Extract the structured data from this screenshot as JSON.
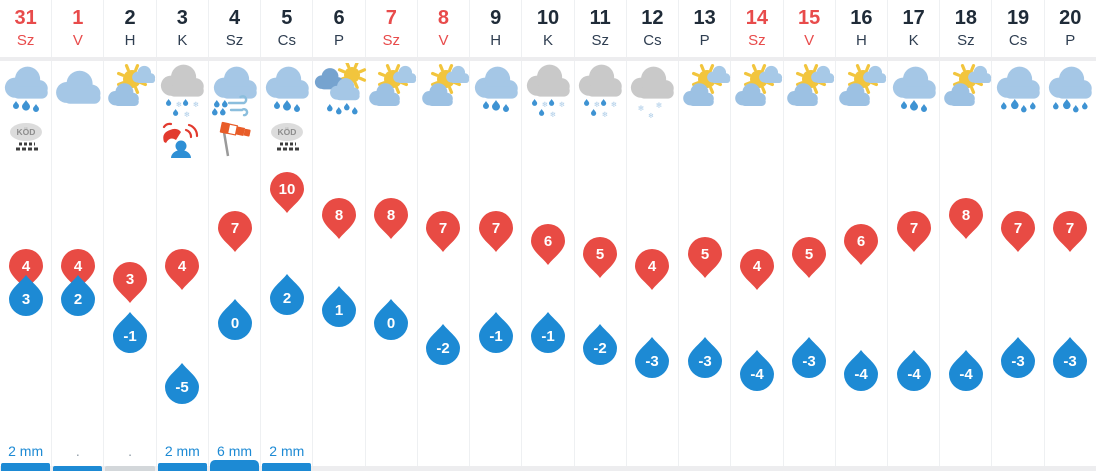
{
  "colors": {
    "accent_red": "#e84b44",
    "accent_blue": "#1d8ad4",
    "date_dark": "#1f2b38",
    "day_dark": "#2f3e51",
    "cloud_blue": "#a5c7e6",
    "cloud_dark_blue": "#76a3cf",
    "cloud_gray": "#c9c9c9",
    "sun_yellow": "#f2c53d",
    "raindrop_blue": "#3e93d3",
    "snowflake_blue": "#aecde8",
    "bar_gray": "#d3d7da",
    "baseline_gray": "#ededef",
    "grid_line": "#eef0f2",
    "muted_text": "#8d9aa5"
  },
  "columns": [
    {
      "date": "31",
      "day": "Sz",
      "weekend": true,
      "icon": "rain3",
      "extra_icon": "fog",
      "high": 4,
      "low": 3,
      "precip": "2 mm",
      "bar": {
        "height": 8,
        "color": "blue"
      }
    },
    {
      "date": "1",
      "day": "V",
      "weekend": true,
      "icon": "cloud",
      "extra_icon": null,
      "high": 4,
      "low": 2,
      "precip": ".",
      "bar": {
        "height": 5,
        "color": "blue"
      }
    },
    {
      "date": "2",
      "day": "H",
      "weekend": false,
      "icon": "suncloud",
      "extra_icon": null,
      "high": 3,
      "low": -1,
      "precip": ".",
      "bar": {
        "height": 5,
        "color": "gray"
      }
    },
    {
      "date": "3",
      "day": "K",
      "weekend": false,
      "icon": "sleet",
      "extra_icon": "siren",
      "high": 4,
      "low": -5,
      "precip": "2 mm",
      "bar": {
        "height": 8,
        "color": "blue"
      }
    },
    {
      "date": "4",
      "day": "Sz",
      "weekend": false,
      "icon": "rainwind",
      "extra_icon": "windsock",
      "high": 7,
      "low": 0,
      "precip": "6 mm",
      "bar": {
        "height": 11,
        "color": "blue"
      }
    },
    {
      "date": "5",
      "day": "Cs",
      "weekend": false,
      "icon": "rain3",
      "extra_icon": "fog",
      "high": 10,
      "low": 2,
      "precip": "2 mm",
      "bar": {
        "height": 8,
        "color": "blue"
      }
    },
    {
      "date": "6",
      "day": "P",
      "weekend": false,
      "icon": "sunrain",
      "extra_icon": null,
      "high": 8,
      "low": 1,
      "precip": "",
      "bar": null
    },
    {
      "date": "7",
      "day": "Sz",
      "weekend": true,
      "icon": "suncloud",
      "extra_icon": null,
      "high": 8,
      "low": 0,
      "precip": "",
      "bar": null
    },
    {
      "date": "8",
      "day": "V",
      "weekend": true,
      "icon": "suncloud",
      "extra_icon": null,
      "high": 7,
      "low": -2,
      "precip": "",
      "bar": null
    },
    {
      "date": "9",
      "day": "H",
      "weekend": false,
      "icon": "rain3",
      "extra_icon": null,
      "high": 7,
      "low": -1,
      "precip": "",
      "bar": null
    },
    {
      "date": "10",
      "day": "K",
      "weekend": false,
      "icon": "sleet",
      "extra_icon": null,
      "high": 6,
      "low": -1,
      "precip": "",
      "bar": null
    },
    {
      "date": "11",
      "day": "Sz",
      "weekend": false,
      "icon": "sleet",
      "extra_icon": null,
      "high": 5,
      "low": -2,
      "precip": "",
      "bar": null
    },
    {
      "date": "12",
      "day": "Cs",
      "weekend": false,
      "icon": "snow",
      "extra_icon": null,
      "high": 4,
      "low": -3,
      "precip": "",
      "bar": null
    },
    {
      "date": "13",
      "day": "P",
      "weekend": false,
      "icon": "suncloud",
      "extra_icon": null,
      "high": 5,
      "low": -3,
      "precip": "",
      "bar": null
    },
    {
      "date": "14",
      "day": "Sz",
      "weekend": true,
      "icon": "suncloud",
      "extra_icon": null,
      "high": 4,
      "low": -4,
      "precip": "",
      "bar": null
    },
    {
      "date": "15",
      "day": "V",
      "weekend": true,
      "icon": "suncloud",
      "extra_icon": null,
      "high": 5,
      "low": -3,
      "precip": "",
      "bar": null
    },
    {
      "date": "16",
      "day": "H",
      "weekend": false,
      "icon": "suncloud",
      "extra_icon": null,
      "high": 6,
      "low": -4,
      "precip": "",
      "bar": null
    },
    {
      "date": "17",
      "day": "K",
      "weekend": false,
      "icon": "rain3",
      "extra_icon": null,
      "high": 7,
      "low": -4,
      "precip": "",
      "bar": null
    },
    {
      "date": "18",
      "day": "Sz",
      "weekend": false,
      "icon": "suncloud",
      "extra_icon": null,
      "high": 8,
      "low": -4,
      "precip": "",
      "bar": null
    },
    {
      "date": "19",
      "day": "Cs",
      "weekend": false,
      "icon": "rain4",
      "extra_icon": null,
      "high": 7,
      "low": -3,
      "precip": "",
      "bar": null
    },
    {
      "date": "20",
      "day": "P",
      "weekend": false,
      "icon": "rain4",
      "extra_icon": null,
      "high": 7,
      "low": -3,
      "precip": "",
      "bar": null
    }
  ],
  "fog_label": "KÖD"
}
